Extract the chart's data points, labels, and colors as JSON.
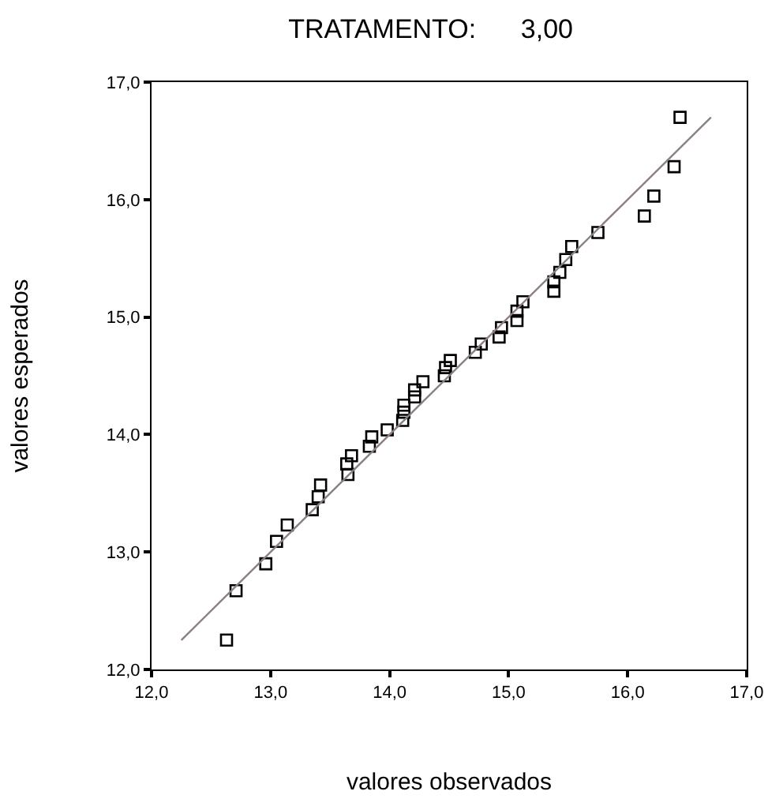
{
  "chart_data": {
    "type": "scatter",
    "title": "TRATAMENTO:      3,00",
    "xlabel": "valores observados",
    "ylabel": "valores esperados",
    "marker": "square",
    "xlim": [
      12,
      17
    ],
    "ylim": [
      12,
      17
    ],
    "xticks": [
      {
        "value": 12,
        "label": "12,0"
      },
      {
        "value": 13,
        "label": "13,0"
      },
      {
        "value": 14,
        "label": "14,0"
      },
      {
        "value": 15,
        "label": "15,0"
      },
      {
        "value": 16,
        "label": "16,0"
      },
      {
        "value": 17,
        "label": "17,0"
      }
    ],
    "yticks": [
      {
        "value": 12,
        "label": "12,0"
      },
      {
        "value": 13,
        "label": "13,0"
      },
      {
        "value": 14,
        "label": "14,0"
      },
      {
        "value": 15,
        "label": "15,0"
      },
      {
        "value": 16,
        "label": "16,0"
      },
      {
        "value": 17,
        "label": "17,0"
      }
    ],
    "series": [
      {
        "color": "#000000",
        "x": [
          12.63,
          12.71,
          12.96,
          13.05,
          13.14,
          13.35,
          13.4,
          13.42,
          13.65,
          13.64,
          13.68,
          13.83,
          13.85,
          13.98,
          14.11,
          14.12,
          14.12,
          14.21,
          14.21,
          14.28,
          14.46,
          14.47,
          14.51,
          14.72,
          14.77,
          14.92,
          14.94,
          15.07,
          15.07,
          15.12,
          15.38,
          15.38,
          15.43,
          15.48,
          15.53,
          15.75,
          16.14,
          16.22,
          16.39,
          16.44
        ],
        "values": [
          12.25,
          12.67,
          12.9,
          13.09,
          13.23,
          13.36,
          13.47,
          13.57,
          13.66,
          13.75,
          13.82,
          13.9,
          13.98,
          14.04,
          14.12,
          14.19,
          14.25,
          14.32,
          14.38,
          14.45,
          14.5,
          14.57,
          14.63,
          14.7,
          14.77,
          14.83,
          14.91,
          14.97,
          15.05,
          15.13,
          15.22,
          15.3,
          15.38,
          15.49,
          15.6,
          15.72,
          15.86,
          16.03,
          16.28,
          16.7
        ]
      },
      {
        "type": "line",
        "color": "#8c7f80",
        "marker": "none",
        "x": [
          12.25,
          16.7
        ],
        "values": [
          12.25,
          16.7
        ]
      }
    ]
  }
}
